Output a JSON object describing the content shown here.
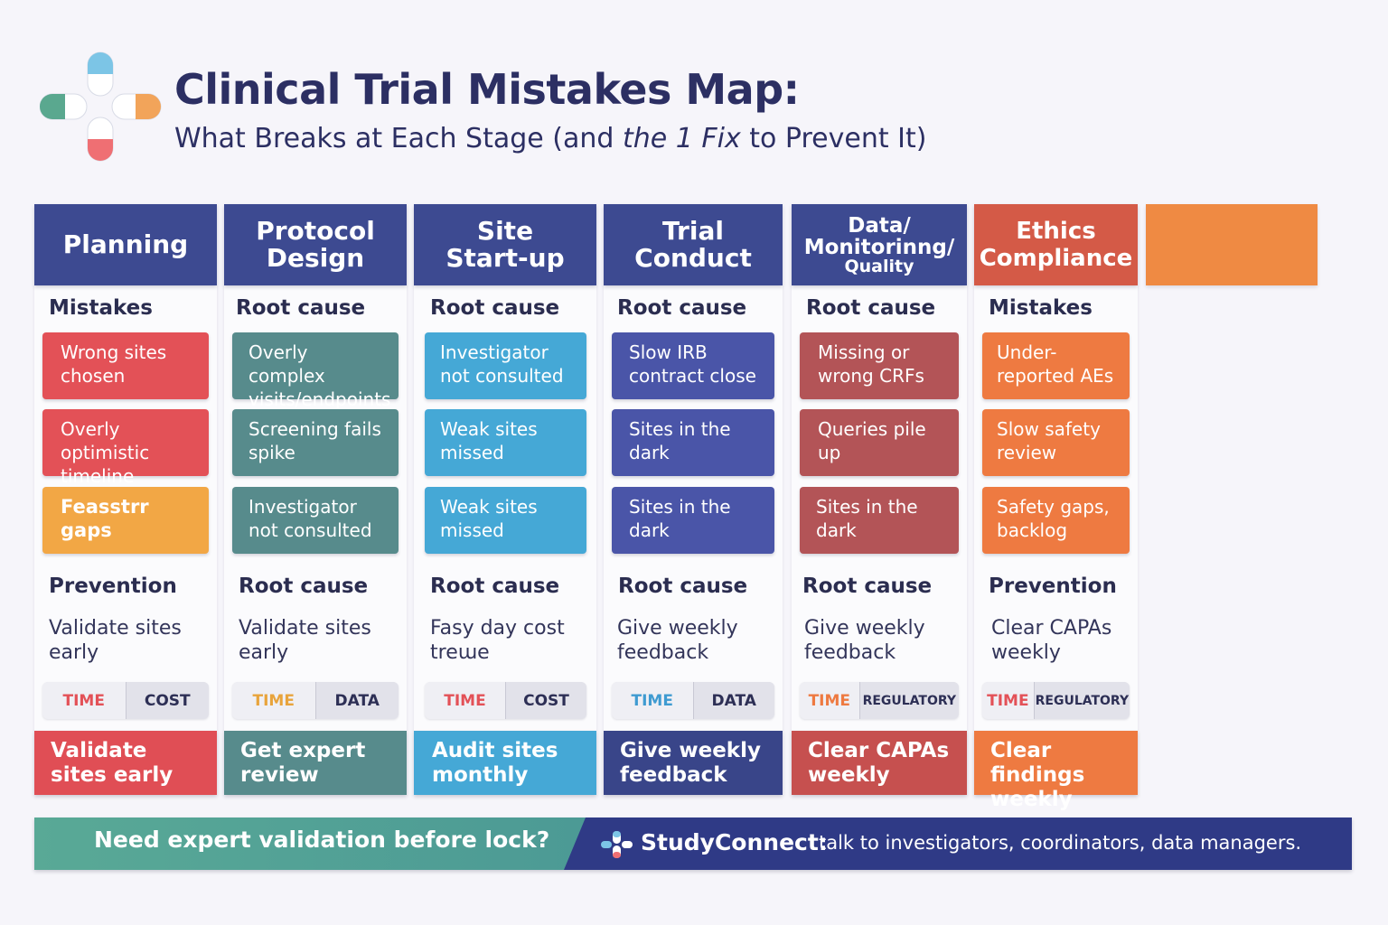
{
  "header": {
    "title": "Clinical Trial Mistakes Map:",
    "subtitle_part1": "What Breaks at Each Stage (and ",
    "subtitle_em": "the 1 Fix",
    "subtitle_part2": " to Prevent It)"
  },
  "colors": {
    "navy": "#3d4a91",
    "red": "#e35157",
    "teal": "#578b8c",
    "blue": "#45a8d6",
    "indigo": "#4a55a8",
    "maroon": "#b35457",
    "orange": "#ee7a41",
    "amber": "#f2a745"
  },
  "columns": [
    {
      "head_lines": [
        "Planning"
      ],
      "section1": "Mistakes",
      "cards": [
        "Wrong sites chosen",
        "Overly optimistic timeline",
        "Feasstrr gaps"
      ],
      "section2": "Prevention",
      "prevention": "Validate sites early",
      "tag_a": "TIME",
      "tag_b": "COST",
      "fix": "Validate sites early"
    },
    {
      "head_lines": [
        "Protocol",
        "Design"
      ],
      "section1": "Root cause",
      "cards": [
        "Overly complex visits/endpoints",
        "Screening fails spike",
        "Investigator not consulted"
      ],
      "section2": "Root cause",
      "prevention": "Validate sites early",
      "tag_a": "TIME",
      "tag_b": "DATA",
      "fix": "Get expert review"
    },
    {
      "head_lines": [
        "Site",
        "Start-up"
      ],
      "section1": "Root cause",
      "cards": [
        "Investigator not consulted",
        "Weak sites missed",
        "Weak sites missed"
      ],
      "section2": "Root cause",
      "prevention": "Fasy day cost treɯe",
      "tag_a": "TIME",
      "tag_b": "COST",
      "fix": "Audit sites monthly"
    },
    {
      "head_lines": [
        "Trial",
        "Conduct"
      ],
      "section1": "Root cause",
      "cards": [
        "Slow IRB contract close",
        "Sites in the dark",
        "Sites in the dark"
      ],
      "section2": "Root cause",
      "prevention": "Give weekly feedback",
      "tag_a": "TIME",
      "tag_b": "DATA",
      "fix": "Give weekly feedback"
    },
    {
      "head_lines": [
        "Data/",
        "Monitorinng/",
        "Quality"
      ],
      "section1": "Root cause",
      "cards": [
        "Missing or wrong CRFs",
        "Queries pile up",
        "Sites in the dark"
      ],
      "section2": "Root cause",
      "prevention": "Give weekly feedback",
      "tag_a": "TIME",
      "tag_b": "REGULATORY",
      "fix": "Clear CAPAs weekly"
    },
    {
      "head_lines": [
        "Ethics",
        "Compliance"
      ],
      "section1": "Mistakes",
      "cards": [
        "Under-reported AEs",
        "Slow safety review",
        "Safety gaps, backlog"
      ],
      "section2": "Prevention",
      "prevention": "Clear CAPAs weekly",
      "tag_a": "TIME",
      "tag_b": "REGULATORY",
      "fix": "Clear findings weekly"
    }
  ],
  "banner": {
    "question": "Need expert validation before lock?",
    "brand": "StudyConnect:",
    "rest": "talk to investigators, coordinators, data managers."
  }
}
